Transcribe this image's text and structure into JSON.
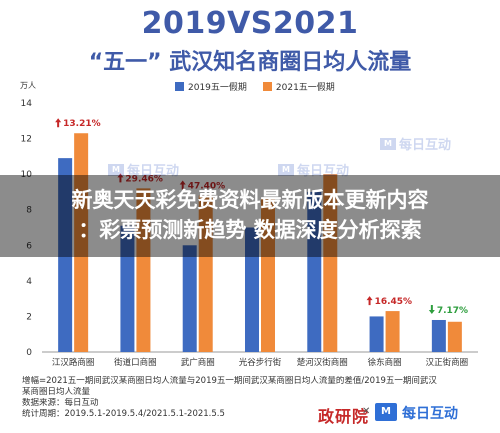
{
  "title_line1": "2019VS2021",
  "title_line2": "“五一” 武汉知名商圈日均人流量",
  "unit": "万人",
  "legend": [
    {
      "label": "2019五一假期",
      "color": "#3e6bc1"
    },
    {
      "label": "2021五一假期",
      "color": "#f08a3a"
    }
  ],
  "chart_data": {
    "type": "bar",
    "categories": [
      "江汉路商圈",
      "街道口商圈",
      "武广商圈",
      "光谷步行街",
      "楚河汉街商圈",
      "徐东商圈",
      "汉正街商圈"
    ],
    "series": [
      {
        "name": "2019五一假期",
        "values": [
          10.9,
          7.1,
          6.0,
          7.0,
          9.0,
          2.0,
          1.8
        ]
      },
      {
        "name": "2021五一假期",
        "values": [
          12.3,
          9.2,
          8.8,
          8.6,
          10.0,
          2.3,
          1.7
        ]
      }
    ],
    "annotations": [
      {
        "category_index": 0,
        "text": "13.21%",
        "direction": "up"
      },
      {
        "category_index": 1,
        "text": "29.46%",
        "direction": "up"
      },
      {
        "category_index": 2,
        "text": "47.40%",
        "direction": "up"
      },
      {
        "category_index": 5,
        "text": "16.45%",
        "direction": "up"
      },
      {
        "category_index": 6,
        "text": "7.17%",
        "direction": "down"
      }
    ],
    "ylim": [
      0,
      14
    ],
    "yticks": [
      0,
      2,
      4,
      6,
      8,
      10,
      12,
      14
    ],
    "ylabel": "万人",
    "grid": false,
    "legend_position": "top"
  },
  "annotation_colors": {
    "up": "#c62828",
    "down": "#2e9e3e"
  },
  "footnote": {
    "line1": "增幅=2021五一期间武汉某商圈日均人流量与2019五一期间武汉某商圈日均人流量的差值/2019五一期间武汉",
    "line2": "某商圈日均人流量",
    "line3": "数据来源：每日互动",
    "line4": "统计周期：2019.5.1-2019.5.4/2021.5.1-2021.5.5"
  },
  "brand_left": "政研院",
  "brand_right_box": "M",
  "brand_right": "每日互动",
  "watermark_text": "每日互动",
  "watermark_box": "M",
  "banner_line1": "新奥天天彩免费资料最新版本更新内容",
  "banner_line2": "：彩票预测新趋势 数据深度分析探索"
}
